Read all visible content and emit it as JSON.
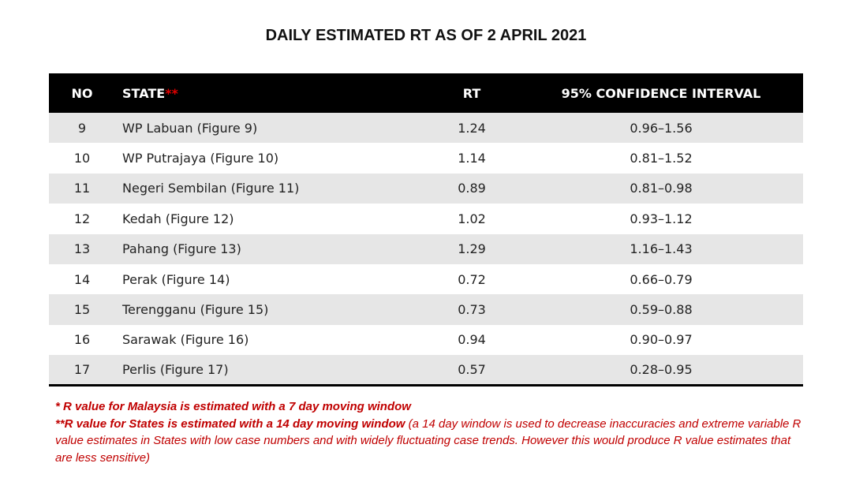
{
  "title": "DAILY ESTIMATED RT AS OF 2 APRIL 2021",
  "table": {
    "headers": {
      "no": "NO",
      "state": "STATE",
      "state_marker": "**",
      "rt": "RT",
      "ci": "95% CONFIDENCE INTERVAL"
    },
    "rows": [
      {
        "no": "9",
        "state": "WP Labuan (Figure 9)",
        "rt": "1.24",
        "ci": "0.96–1.56"
      },
      {
        "no": "10",
        "state": "WP Putrajaya (Figure 10)",
        "rt": "1.14",
        "ci": "0.81–1.52"
      },
      {
        "no": "11",
        "state": "Negeri Sembilan (Figure 11)",
        "rt": "0.89",
        "ci": "0.81–0.98"
      },
      {
        "no": "12",
        "state": "Kedah (Figure 12)",
        "rt": "1.02",
        "ci": "0.93–1.12"
      },
      {
        "no": "13",
        "state": "Pahang (Figure 13)",
        "rt": "1.29",
        "ci": "1.16–1.43"
      },
      {
        "no": "14",
        "state": "Perak (Figure 14)",
        "rt": "0.72",
        "ci": "0.66–0.79"
      },
      {
        "no": "15",
        "state": "Terengganu (Figure 15)",
        "rt": "0.73",
        "ci": "0.59–0.88"
      },
      {
        "no": "16",
        "state": "Sarawak (Figure 16)",
        "rt": "0.94",
        "ci": "0.90–0.97"
      },
      {
        "no": "17",
        "state": "Perlis (Figure 17)",
        "rt": "0.57",
        "ci": "0.28–0.95"
      }
    ]
  },
  "notes": {
    "note1": "*  R value for Malaysia is estimated with a 7 day moving window",
    "note2_bold": "**R value for States is estimated with a 14 day moving window",
    "note2_rest": " (a 14 day window is used to decrease inaccuracies and extreme variable R value estimates in States with low case numbers and with widely fluctuating case trends. However this would produce R value estimates that are less sensitive)"
  },
  "colors": {
    "header_bg": "#000000",
    "row_alt": "#e6e6e6",
    "note_red": "#c00000"
  }
}
